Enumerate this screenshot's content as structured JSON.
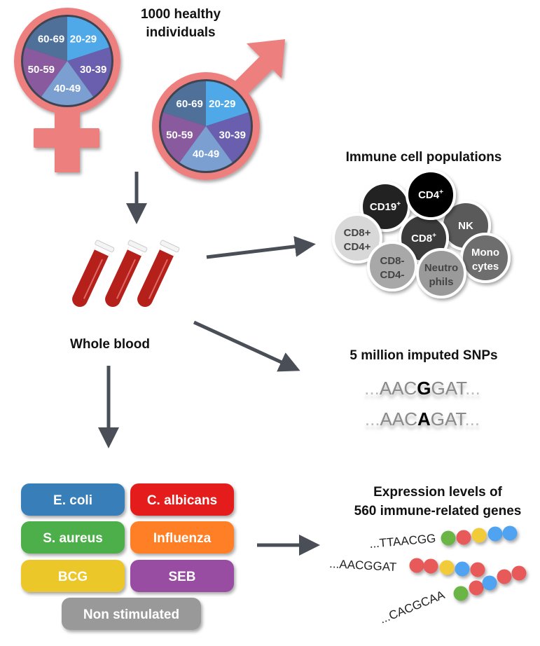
{
  "cohort": {
    "title_line1": "1000 healthy",
    "title_line2": "individuals",
    "symbol_color": "#EE7F7F",
    "age_groups": [
      {
        "label": "20-29",
        "color": "#4FA8E8"
      },
      {
        "label": "30-39",
        "color": "#6A5FAF"
      },
      {
        "label": "40-49",
        "color": "#7A9FD0"
      },
      {
        "label": "50-59",
        "color": "#8A5A9E"
      },
      {
        "label": "60-69",
        "color": "#4E7099"
      }
    ]
  },
  "sample": {
    "label": "Whole blood",
    "tube_color": "#B5201A"
  },
  "immune_cells": {
    "title": "Immune cell populations",
    "cells": [
      {
        "label": "CD19",
        "sup": "+",
        "color": "#222222"
      },
      {
        "label": "NK",
        "sup": "",
        "color": "#5A5A5A"
      },
      {
        "label": "CD8+",
        "label2": "CD4+",
        "color": "#D8D8D8"
      },
      {
        "label": "CD8",
        "sup": "+",
        "color": "#3A3A3A"
      },
      {
        "label": "CD4",
        "sup": "+",
        "color": "#000000"
      },
      {
        "label": "CD8-",
        "label2": "CD4-",
        "color": "#A8A8A8"
      },
      {
        "label": "Mono",
        "label2": "cytes",
        "color": "#6E6E6E"
      },
      {
        "label": "Neutro",
        "label2": "phils",
        "color": "#9A9A9A"
      }
    ]
  },
  "snps": {
    "title": "5 million imputed SNPs",
    "seq1": {
      "prefix": "...",
      "left": "AAC",
      "variant": "G",
      "right": "GAT",
      "suffix": "..."
    },
    "seq2": {
      "prefix": "...",
      "left": "AAC",
      "variant": "A",
      "right": "GAT",
      "suffix": "..."
    }
  },
  "stimuli": [
    {
      "label": "E. coli",
      "color": "#377EB8"
    },
    {
      "label": "C. albicans",
      "color": "#E41A1C"
    },
    {
      "label": "S. aureus",
      "color": "#4DAF4A"
    },
    {
      "label": "Influenza",
      "color": "#FF7F27"
    },
    {
      "label": "BCG",
      "color": "#EBC72A"
    },
    {
      "label": "SEB",
      "color": "#984EA3"
    },
    {
      "label": "Non stimulated",
      "color": "#999999"
    }
  ],
  "expression": {
    "title_line1": "Expression levels of",
    "title_line2": "560 immune-related genes",
    "strands": [
      {
        "seq": "...TTAACGG",
        "beads": [
          "#6AB545",
          "#E85A5A",
          "#F2CB3A",
          "#4FA3F0",
          "#4FA3F0"
        ]
      },
      {
        "seq": "...AACGGAT",
        "beads": [
          "#E85A5A",
          "#E85A5A",
          "#F2CB3A",
          "#4FA3F0",
          "#E85A5A"
        ]
      },
      {
        "seq": "...CACGCAA",
        "beads": [
          "#6AB545",
          "#E85A5A",
          "#4FA3F0",
          "#E85A5A",
          "#E85A5A"
        ]
      }
    ]
  },
  "arrow_color": "#4A4F57"
}
